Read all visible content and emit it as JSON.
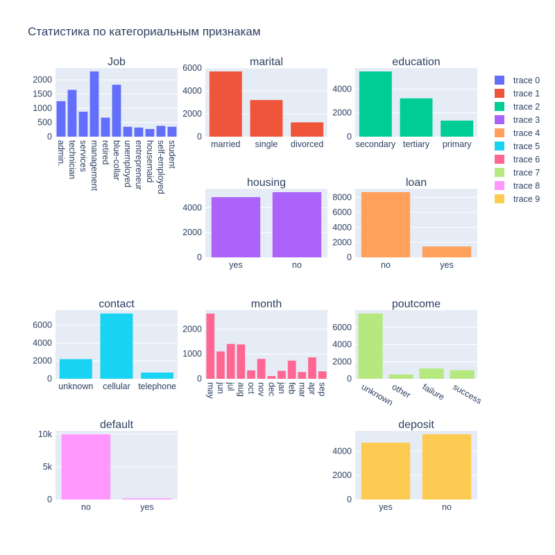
{
  "title": "Статистика по  категориальным признакам",
  "legend": {
    "placement": "right",
    "entries": [
      {
        "name": "trace 0",
        "color": "#636efa"
      },
      {
        "name": "trace 1",
        "color": "#EF553B"
      },
      {
        "name": "trace 2",
        "color": "#00cc96"
      },
      {
        "name": "trace 3",
        "color": "#ab63fa"
      },
      {
        "name": "trace 4",
        "color": "#FFA15A"
      },
      {
        "name": "trace 5",
        "color": "#19d3f3"
      },
      {
        "name": "trace 6",
        "color": "#FF6692"
      },
      {
        "name": "trace 7",
        "color": "#B6E880"
      },
      {
        "name": "trace 8",
        "color": "#FF97FF"
      },
      {
        "name": "trace 9",
        "color": "#FECB52"
      }
    ]
  },
  "chart_data": [
    {
      "type": "bar",
      "title": "Job",
      "series_name": "trace 0",
      "color": "#636efa",
      "categories": [
        "admin.",
        "technician",
        "services",
        "management",
        "retired",
        "blue-collar",
        "unemployed",
        "entrepreneur",
        "housemaid",
        "self-employed",
        "student"
      ],
      "values": [
        1250,
        1650,
        880,
        2300,
        670,
        1830,
        350,
        320,
        270,
        380,
        350
      ],
      "ylim": [
        0,
        2420
      ],
      "yticks": [
        0,
        500,
        1000,
        1500,
        2000
      ],
      "ytick_labels": [
        "0",
        "500",
        "1000",
        "1500",
        "2000"
      ],
      "xtick_rotation": 90,
      "grid": true
    },
    {
      "type": "bar",
      "title": "marital",
      "series_name": "trace 1",
      "color": "#EF553B",
      "categories": [
        "married",
        "single",
        "divorced"
      ],
      "values": [
        5700,
        3200,
        1250
      ],
      "ylim": [
        0,
        6000
      ],
      "yticks": [
        0,
        2000,
        4000,
        6000
      ],
      "ytick_labels": [
        "0",
        "2000",
        "4000",
        "6000"
      ],
      "xtick_rotation": 0,
      "grid": true
    },
    {
      "type": "bar",
      "title": "education",
      "series_name": "trace 2",
      "color": "#00cc96",
      "categories": [
        "secondary",
        "tertiary",
        "primary"
      ],
      "values": [
        5480,
        3220,
        1350
      ],
      "ylim": [
        0,
        5770
      ],
      "yticks": [
        0,
        2000,
        4000
      ],
      "ytick_labels": [
        "0",
        "2000",
        "4000"
      ],
      "xtick_rotation": 0,
      "grid": true
    },
    {
      "type": "bar",
      "title": "housing",
      "series_name": "trace 3",
      "color": "#ab63fa",
      "categories": [
        "yes",
        "no"
      ],
      "values": [
        4850,
        5250
      ],
      "ylim": [
        0,
        5530
      ],
      "yticks": [
        0,
        2000,
        4000
      ],
      "ytick_labels": [
        "0",
        "2000",
        "4000"
      ],
      "xtick_rotation": 0,
      "grid": true
    },
    {
      "type": "bar",
      "title": "loan",
      "series_name": "trace 4",
      "color": "#FFA15A",
      "categories": [
        "no",
        "yes"
      ],
      "values": [
        8700,
        1450
      ],
      "ylim": [
        0,
        9160
      ],
      "yticks": [
        0,
        2000,
        4000,
        6000,
        8000
      ],
      "ytick_labels": [
        "0",
        "2000",
        "4000",
        "6000",
        "8000"
      ],
      "xtick_rotation": 0,
      "grid": true
    },
    {
      "type": "bar",
      "title": "contact",
      "series_name": "trace 5",
      "color": "#19d3f3",
      "categories": [
        "unknown",
        "cellular",
        "telephone"
      ],
      "values": [
        2200,
        7300,
        700
      ],
      "ylim": [
        0,
        7680
      ],
      "yticks": [
        0,
        2000,
        4000,
        6000
      ],
      "ytick_labels": [
        "0",
        "2000",
        "4000",
        "6000"
      ],
      "xtick_rotation": 0,
      "grid": true
    },
    {
      "type": "bar",
      "title": "month",
      "series_name": "trace 6",
      "color": "#FF6692",
      "categories": [
        "may",
        "jun",
        "jul",
        "aug",
        "oct",
        "nov",
        "dec",
        "jan",
        "feb",
        "mar",
        "apr",
        "sep"
      ],
      "values": [
        2620,
        1100,
        1400,
        1380,
        340,
        800,
        110,
        320,
        730,
        270,
        860,
        300
      ],
      "ylim": [
        0,
        2760
      ],
      "yticks": [
        0,
        1000,
        2000
      ],
      "ytick_labels": [
        "0",
        "1000",
        "2000"
      ],
      "xtick_rotation": 90,
      "grid": true
    },
    {
      "type": "bar",
      "title": "poutcome",
      "series_name": "trace 7",
      "color": "#B6E880",
      "categories": [
        "unknown",
        "other",
        "failure",
        "success"
      ],
      "values": [
        7600,
        500,
        1200,
        1000
      ],
      "ylim": [
        0,
        8000
      ],
      "yticks": [
        0,
        2000,
        4000,
        6000
      ],
      "ytick_labels": [
        "0",
        "2000",
        "4000",
        "6000"
      ],
      "xtick_rotation": 30,
      "grid": true
    },
    {
      "type": "bar",
      "title": "default",
      "series_name": "trace 8",
      "color": "#FF97FF",
      "categories": [
        "no",
        "yes"
      ],
      "values": [
        10000,
        170
      ],
      "ylim": [
        0,
        10530
      ],
      "yticks": [
        0,
        5000,
        10000
      ],
      "ytick_labels": [
        "0",
        "5k",
        "10k"
      ],
      "xtick_rotation": 0,
      "grid": true
    },
    {
      "type": "bar",
      "title": "deposit",
      "series_name": "trace 9",
      "color": "#FECB52",
      "categories": [
        "yes",
        "no"
      ],
      "values": [
        4700,
        5400
      ],
      "ylim": [
        0,
        5680
      ],
      "yticks": [
        0,
        2000,
        4000
      ],
      "ytick_labels": [
        "0",
        "2000",
        "4000"
      ],
      "xtick_rotation": 0,
      "grid": true
    }
  ]
}
